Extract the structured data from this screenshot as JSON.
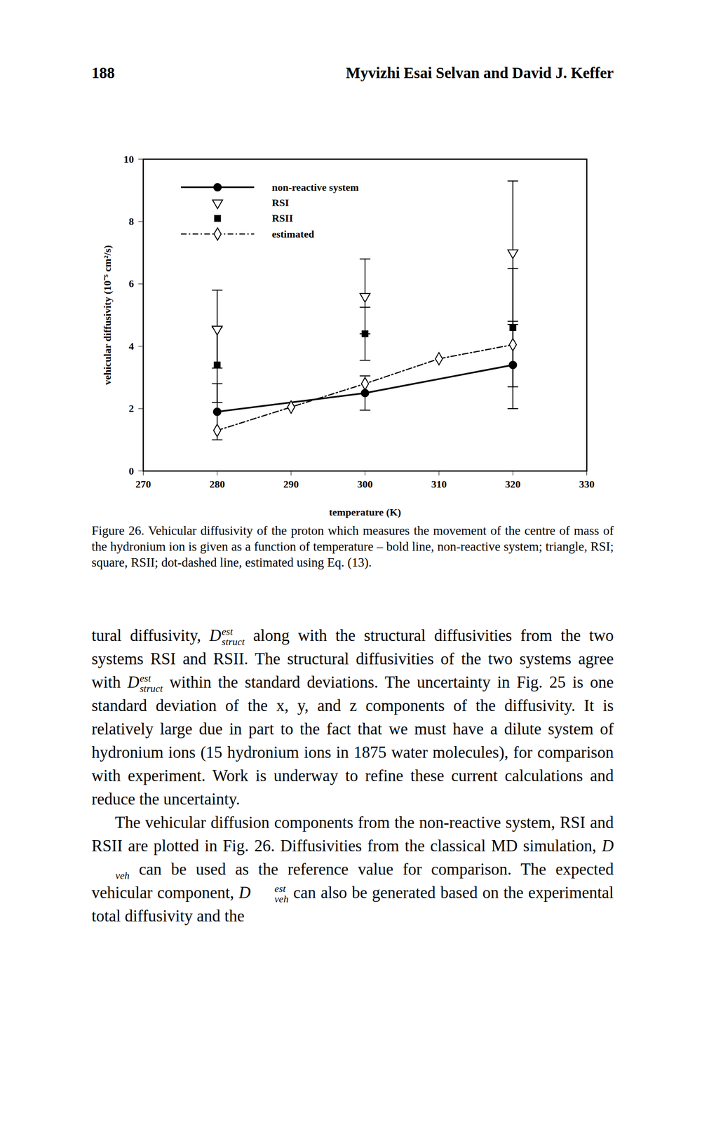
{
  "header": {
    "page_number": "188",
    "authors": "Myvizhi Esai Selvan and David J. Keffer"
  },
  "chart_data": {
    "type": "line",
    "x_label": "temperature (K)",
    "y_label": "vehicular diffusivity (10⁻⁵ cm²/s)",
    "xlim": [
      270,
      330
    ],
    "xticks": [
      270,
      280,
      290,
      300,
      310,
      320,
      330
    ],
    "ylim": [
      0,
      10
    ],
    "yticks": [
      0,
      2,
      4,
      6,
      8,
      10
    ],
    "grid": false,
    "legend": "top-left",
    "series": [
      {
        "name": "non-reactive system",
        "color": "#000000",
        "marker": "filled-circle",
        "line_style": "solid",
        "x": [
          280,
          300,
          320
        ],
        "values": [
          1.9,
          2.5,
          3.4
        ],
        "errors": [
          0.9,
          0.55,
          1.4
        ]
      },
      {
        "name": "RSI",
        "color": "#000000",
        "marker": "open-triangle-down",
        "line_style": "none",
        "x": [
          280,
          300,
          320
        ],
        "values": [
          4.55,
          5.6,
          7.0
        ],
        "errors": [
          1.25,
          1.2,
          2.3
        ]
      },
      {
        "name": "RSII",
        "color": "#000000",
        "marker": "filled-square",
        "line_style": "none",
        "x": [
          280,
          300,
          320
        ],
        "values": [
          3.4,
          4.4,
          4.6
        ],
        "errors": [
          1.2,
          0.85,
          1.9
        ]
      },
      {
        "name": "estimated",
        "color": "#000000",
        "marker": "open-diamond",
        "line_style": "dash-dot",
        "x": [
          280,
          290,
          300,
          310,
          320
        ],
        "values": [
          1.3,
          2.05,
          2.8,
          3.6,
          4.05
        ]
      }
    ]
  },
  "caption": "Figure 26. Vehicular diffusivity of the proton which measures the movement of the centre of mass of the hydronium ion is given as a function of temperature – bold line, non-reactive system; triangle, RSI; square, RSII; dot-dashed line, estimated using Eq. (13).",
  "paragraphs": [
    {
      "indent": false,
      "segments": [
        "tural diffusivity, ",
        {
          "base": "D",
          "sup": "est",
          "sub": "struct"
        },
        " along with the structural diffusivities from the two systems RSI and RSII. The structural diffusivities of the two systems agree with ",
        {
          "base": "D",
          "sup": "est",
          "sub": "struct"
        },
        " within the standard deviations. The uncertainty in Fig. 25 is one standard deviation of the x, y, and z components of the diffusivity. It is relatively large due in part to the fact that we must have a dilute system of hydronium ions (15 hydronium ions in 1875 water molecules), for comparison with experiment. Work is underway to refine these current calculations and reduce the uncertainty."
      ]
    },
    {
      "indent": true,
      "segments": [
        "The vehicular diffusion components from the non-reactive system, RSI and RSII are plotted in Fig. 26. Diffusivities from the classical MD simulation, ",
        {
          "base": "D",
          "sub": "veh"
        },
        " can be used as the reference value for comparison. The expected vehicular component, ",
        {
          "base": "D",
          "sup": "est",
          "sub": "veh"
        },
        " can also be generated based on the experimental total diffusivity and the"
      ]
    }
  ]
}
